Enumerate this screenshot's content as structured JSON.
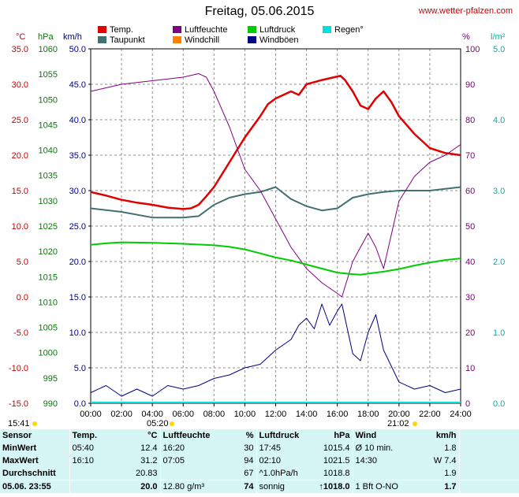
{
  "title": "Freitag, 05.06.2015",
  "url": "www.wetter-pfalzen.com",
  "legend": [
    {
      "label": "Temp.",
      "color": "#e00000"
    },
    {
      "label": "Luftfeuchte",
      "color": "#800080"
    },
    {
      "label": "Luftdruck",
      "color": "#00cc00"
    },
    {
      "label": "Regen°",
      "color": "#00e0e0"
    },
    {
      "label": "Taupunkt",
      "color": "#407070"
    },
    {
      "label": "Windchill",
      "color": "#ff8000"
    },
    {
      "label": "Windböen",
      "color": "#000080"
    }
  ],
  "axes": {
    "unit_c": "°C",
    "unit_hpa": "hPa",
    "unit_kmh": "km/h",
    "unit_pct": "%",
    "unit_lm2": "l/m²",
    "temp_ticks": [
      "35.0",
      "30.0",
      "25.0",
      "20.0",
      "15.0",
      "10.0",
      "5.0",
      "0.0",
      "-5.0",
      "-10.0",
      "-15.0"
    ],
    "hpa_ticks": [
      "1060",
      "1055",
      "1050",
      "1045",
      "1040",
      "1035",
      "1030",
      "1025",
      "1020",
      "1015",
      "1010",
      "1005",
      "1000",
      "995",
      "990"
    ],
    "kmh_ticks": [
      "50.0",
      "45.0",
      "40.0",
      "35.0",
      "30.0",
      "25.0",
      "20.0",
      "15.0",
      "10.0",
      "5.0",
      "0.0"
    ],
    "pct_ticks": [
      "100",
      "90",
      "80",
      "70",
      "60",
      "50",
      "40",
      "30",
      "20",
      "10",
      "0"
    ],
    "rain_ticks": [
      "5.0",
      "4.0",
      "3.0",
      "2.0",
      "1.0",
      "0.0"
    ],
    "x_ticks": [
      "00:00",
      "02:00",
      "04:00",
      "06:00",
      "08:00",
      "10:00",
      "12:00",
      "14:00",
      "16:00",
      "18:00",
      "20:00",
      "22:00",
      "24:00"
    ],
    "sunrise_left": "15:41",
    "sunrise": "05:20",
    "sunset": "21:02"
  },
  "chart_data": {
    "type": "line",
    "title": "Freitag, 05.06.2015",
    "x_range_hours": [
      0,
      24
    ],
    "series": [
      {
        "name": "Temp.",
        "unit": "°C",
        "ylim": [
          -15,
          35
        ],
        "x": [
          0,
          1,
          2,
          3,
          4,
          5,
          6,
          6.5,
          7,
          7.5,
          8,
          9,
          10,
          11,
          11.5,
          12,
          13,
          13.5,
          14,
          15,
          16,
          16.2,
          16.5,
          17,
          17.5,
          18,
          18.5,
          19,
          19.5,
          20,
          21,
          22,
          23,
          24
        ],
        "y": [
          14.8,
          14.3,
          13.7,
          13.3,
          13.0,
          12.6,
          12.4,
          12.5,
          13.0,
          14.2,
          15.5,
          19.0,
          22.5,
          25.5,
          27.2,
          28.0,
          29.0,
          28.5,
          30.0,
          30.6,
          31.1,
          31.2,
          30.6,
          29.0,
          27.0,
          26.5,
          28.0,
          29.0,
          27.5,
          25.5,
          23.0,
          21.0,
          20.3,
          20.0
        ]
      },
      {
        "name": "Taupunkt",
        "unit": "°C",
        "ylim": [
          -15,
          35
        ],
        "x": [
          0,
          2,
          4,
          6,
          7,
          8,
          9,
          10,
          11,
          12,
          13,
          14,
          15,
          16,
          17,
          18,
          19,
          20,
          22,
          24
        ],
        "y": [
          12.5,
          12.0,
          11.2,
          11.2,
          11.4,
          13.0,
          14.0,
          14.5,
          14.8,
          15.5,
          13.8,
          12.8,
          12.2,
          12.5,
          14.0,
          14.5,
          14.8,
          15.0,
          15.0,
          15.5
        ]
      },
      {
        "name": "Luftfeuchte",
        "unit": "%",
        "ylim": [
          0,
          100
        ],
        "x": [
          0,
          1,
          2,
          3,
          4,
          5,
          6,
          7,
          7.5,
          8,
          9,
          10,
          11,
          12,
          13,
          14,
          15,
          16,
          16.3,
          17,
          17.5,
          18,
          18.5,
          19,
          20,
          21,
          22,
          23,
          24
        ],
        "y": [
          88,
          89,
          90,
          90.5,
          91,
          91.5,
          92,
          93,
          92,
          88,
          78,
          66,
          60,
          52,
          44,
          38,
          34,
          31,
          30,
          40,
          44,
          48,
          44,
          38,
          57,
          64,
          68,
          70,
          73
        ]
      },
      {
        "name": "Luftdruck",
        "unit": "hPa",
        "ylim": [
          990,
          1060
        ],
        "x": [
          0,
          1,
          2,
          4,
          6,
          8,
          9,
          10,
          11,
          12,
          13,
          14,
          15,
          16,
          17,
          17.5,
          18,
          19,
          20,
          21,
          22,
          23,
          24
        ],
        "y": [
          1021.3,
          1021.6,
          1021.8,
          1021.7,
          1021.5,
          1021.2,
          1020.9,
          1020.4,
          1019.6,
          1018.8,
          1018.2,
          1017.4,
          1016.6,
          1015.8,
          1015.5,
          1015.4,
          1015.6,
          1016.0,
          1016.5,
          1017.2,
          1017.8,
          1018.3,
          1018.6
        ]
      },
      {
        "name": "Windböen",
        "unit": "km/h",
        "ylim": [
          0,
          50
        ],
        "x": [
          0,
          1,
          2,
          3,
          4,
          5,
          6,
          7,
          8,
          9,
          10,
          11,
          12,
          13,
          13.5,
          14,
          14.5,
          15,
          15.5,
          16,
          16.3,
          17,
          17.5,
          18,
          18.5,
          19,
          20,
          21,
          22,
          23,
          24
        ],
        "y": [
          1.5,
          2.5,
          1.0,
          2.0,
          1.0,
          2.5,
          2.0,
          2.5,
          3.5,
          4.0,
          5.0,
          5.5,
          7.5,
          9.0,
          11.0,
          12.0,
          10.5,
          14.0,
          11.0,
          13.0,
          14.0,
          7.0,
          6.0,
          10.0,
          12.5,
          7.5,
          3.0,
          2.0,
          2.5,
          1.5,
          2.0
        ]
      }
    ]
  },
  "stats": {
    "headers": [
      "Sensor",
      "Temp.",
      "°C",
      "Luftfeuchte",
      "%",
      "Luftdruck",
      "hPa",
      "Wind",
      "km/h"
    ],
    "rows": [
      {
        "label": "MinWert",
        "temp_time": "05:40",
        "temp_val": "12.4",
        "hum_time": "16:20",
        "hum_val": "30",
        "pres_time": "17:45",
        "pres_val": "1015.4",
        "wind_time": "Ø 10 min.",
        "wind_val": "1.8"
      },
      {
        "label": "MaxWert",
        "temp_time": "16:10",
        "temp_val": "31.2",
        "hum_time": "07:05",
        "hum_val": "94",
        "pres_time": "02:10",
        "pres_val": "1021.5",
        "wind_time": "14:30",
        "wind_val": "W 7.4"
      },
      {
        "label": "Durchschnitt",
        "temp_time": "",
        "temp_val": "20.83",
        "hum_time": "",
        "hum_val": "67",
        "pres_time": "^1.0hPa/h",
        "pres_val": "1018.8",
        "wind_time": "",
        "wind_val": "1.9"
      },
      {
        "label": "05.06.  23:55",
        "temp_time": "",
        "temp_val": "20.0",
        "hum_time": "12.80 g/m³",
        "hum_val": "74",
        "pres_time": "sonnig",
        "pres_val": "↑1018.0",
        "wind_time": "1 Bft O-NO",
        "wind_val": "1.7"
      }
    ]
  }
}
